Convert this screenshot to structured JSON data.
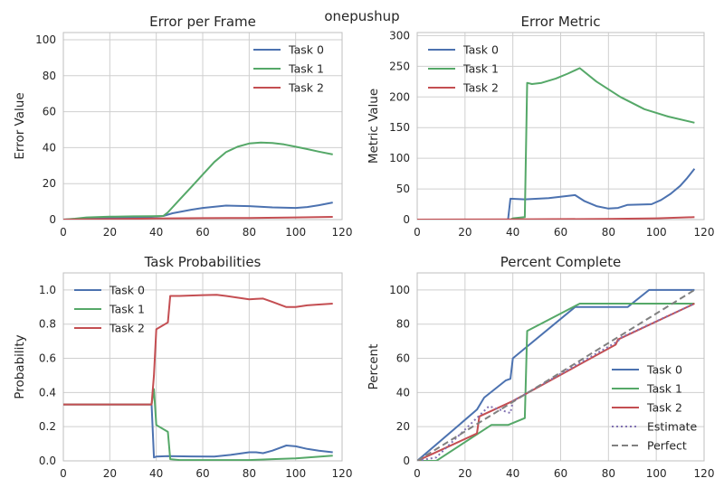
{
  "figure": {
    "suptitle": "onepushup"
  },
  "colors": {
    "task0": "#4c72b0",
    "task1": "#55a868",
    "task2": "#c44e52",
    "estimate": "#8172b2",
    "perfect": "#808080"
  },
  "chart_data": [
    {
      "type": "line",
      "title": "Error per Frame",
      "xlabel": "",
      "ylabel": "Error Value",
      "xlim": [
        0,
        120
      ],
      "ylim": [
        0,
        104
      ],
      "xticks": [
        0,
        20,
        40,
        60,
        80,
        100,
        120
      ],
      "yticks": [
        0,
        20,
        40,
        60,
        80,
        100
      ],
      "grid": true,
      "legend": "top-right",
      "series": [
        {
          "name": "Task 0",
          "color": "#4c72b0",
          "style": "solid",
          "x": [
            0,
            10,
            20,
            30,
            38,
            43,
            47,
            55,
            60,
            70,
            80,
            90,
            100,
            105,
            110,
            116
          ],
          "y": [
            0,
            0.6,
            1.0,
            1.2,
            1.5,
            2.0,
            3.5,
            5.5,
            6.5,
            7.8,
            7.5,
            6.8,
            6.5,
            7.0,
            8.0,
            9.5
          ]
        },
        {
          "name": "Task 1",
          "color": "#55a868",
          "style": "solid",
          "x": [
            0,
            5,
            10,
            20,
            30,
            38,
            43,
            45,
            50,
            55,
            60,
            65,
            70,
            75,
            80,
            85,
            90,
            95,
            100,
            105,
            110,
            116
          ],
          "y": [
            0,
            0.5,
            1.2,
            1.6,
            1.8,
            1.9,
            2.0,
            4.0,
            11,
            18,
            25,
            32,
            37.5,
            40.5,
            42.3,
            42.8,
            42.6,
            41.8,
            40.5,
            39.2,
            37.8,
            36.2
          ]
        },
        {
          "name": "Task 2",
          "color": "#c44e52",
          "style": "solid",
          "x": [
            0,
            20,
            40,
            60,
            80,
            100,
            116
          ],
          "y": [
            0,
            0.3,
            0.6,
            0.8,
            0.9,
            1.2,
            1.5
          ]
        }
      ]
    },
    {
      "type": "line",
      "title": "Error Metric",
      "xlabel": "",
      "ylabel": "Metric Value",
      "xlim": [
        0,
        120
      ],
      "ylim": [
        0,
        305
      ],
      "xticks": [
        0,
        20,
        40,
        60,
        80,
        100,
        120
      ],
      "yticks": [
        0,
        50,
        100,
        150,
        200,
        250,
        300
      ],
      "grid": true,
      "legend": "top-left",
      "series": [
        {
          "name": "Task 0",
          "color": "#4c72b0",
          "style": "solid",
          "x": [
            0,
            38,
            39,
            45,
            55,
            66,
            70,
            75,
            80,
            84,
            88,
            98,
            102,
            106,
            110,
            113,
            116
          ],
          "y": [
            0,
            0,
            34,
            33,
            35,
            40,
            30,
            22,
            18,
            19,
            24,
            25,
            32,
            42,
            55,
            68,
            83
          ]
        },
        {
          "name": "Task 1",
          "color": "#55a868",
          "style": "solid",
          "x": [
            0,
            39,
            40,
            45,
            46,
            48,
            52,
            58,
            63,
            68,
            75,
            85,
            95,
            105,
            116
          ],
          "y": [
            0,
            0,
            2,
            4,
            223,
            221,
            223,
            230,
            238,
            247,
            225,
            200,
            180,
            168,
            158
          ]
        },
        {
          "name": "Task 2",
          "color": "#c44e52",
          "style": "solid",
          "x": [
            0,
            40,
            80,
            100,
            116
          ],
          "y": [
            0,
            0.5,
            1,
            2,
            4
          ]
        }
      ]
    },
    {
      "type": "line",
      "title": "Task Probabilities",
      "xlabel": "",
      "ylabel": "Probability",
      "xlim": [
        0,
        120
      ],
      "ylim": [
        0,
        1.1
      ],
      "xticks": [
        0,
        20,
        40,
        60,
        80,
        100,
        120
      ],
      "yticks": [
        0.0,
        0.2,
        0.4,
        0.6,
        0.8,
        1.0
      ],
      "grid": true,
      "legend": "top-left",
      "series": [
        {
          "name": "Task 0",
          "color": "#4c72b0",
          "style": "solid",
          "x": [
            0,
            38,
            39,
            40,
            45,
            55,
            65,
            72,
            80,
            83,
            86,
            90,
            96,
            100,
            105,
            110,
            116
          ],
          "y": [
            0.33,
            0.33,
            0.02,
            0.025,
            0.028,
            0.026,
            0.025,
            0.035,
            0.05,
            0.05,
            0.045,
            0.06,
            0.09,
            0.085,
            0.07,
            0.06,
            0.05
          ]
        },
        {
          "name": "Task 1",
          "color": "#55a868",
          "style": "solid",
          "x": [
            0,
            38,
            39,
            40,
            45,
            46,
            50,
            60,
            70,
            80,
            90,
            100,
            116
          ],
          "y": [
            0.33,
            0.33,
            0.42,
            0.21,
            0.17,
            0.01,
            0.005,
            0.005,
            0.005,
            0.005,
            0.01,
            0.015,
            0.03
          ]
        },
        {
          "name": "Task 2",
          "color": "#c44e52",
          "style": "solid",
          "x": [
            0,
            38,
            39,
            40,
            45,
            46,
            50,
            60,
            66,
            70,
            75,
            80,
            83,
            86,
            90,
            96,
            100,
            105,
            110,
            116
          ],
          "y": [
            0.33,
            0.33,
            0.5,
            0.77,
            0.81,
            0.965,
            0.965,
            0.97,
            0.972,
            0.965,
            0.955,
            0.945,
            0.948,
            0.95,
            0.93,
            0.9,
            0.9,
            0.91,
            0.915,
            0.92
          ]
        }
      ]
    },
    {
      "type": "line",
      "title": "Percent Complete",
      "xlabel": "",
      "ylabel": "Percent",
      "xlim": [
        0,
        120
      ],
      "ylim": [
        0,
        110
      ],
      "xticks": [
        0,
        20,
        40,
        60,
        80,
        100,
        120
      ],
      "yticks": [
        0,
        20,
        40,
        60,
        80,
        100
      ],
      "grid": true,
      "legend": "lower-right",
      "series": [
        {
          "name": "Task 0",
          "color": "#4c72b0",
          "style": "solid",
          "x": [
            0,
            25,
            28,
            37,
            39,
            40,
            66,
            88,
            97,
            116
          ],
          "y": [
            0,
            30,
            37,
            47,
            48,
            60,
            90,
            90,
            100,
            100
          ]
        },
        {
          "name": "Task 1",
          "color": "#55a868",
          "style": "solid",
          "x": [
            0,
            8,
            31,
            34,
            38,
            45,
            46,
            68,
            116
          ],
          "y": [
            0,
            0,
            21,
            21,
            21,
            25,
            76,
            92,
            92
          ]
        },
        {
          "name": "Task 2",
          "color": "#c44e52",
          "style": "solid",
          "x": [
            0,
            25,
            26,
            40,
            83,
            84,
            116
          ],
          "y": [
            0,
            16,
            26,
            35,
            68,
            71,
            92
          ]
        },
        {
          "name": "Estimate",
          "color": "#8172b2",
          "style": "dotted",
          "x": [
            0,
            8,
            30,
            39,
            40,
            84,
            85,
            116
          ],
          "y": [
            0,
            2,
            32,
            28,
            35,
            70,
            72,
            92
          ]
        },
        {
          "name": "Perfect",
          "color": "#808080",
          "style": "dashed",
          "x": [
            0,
            116
          ],
          "y": [
            0,
            100
          ]
        }
      ]
    }
  ]
}
